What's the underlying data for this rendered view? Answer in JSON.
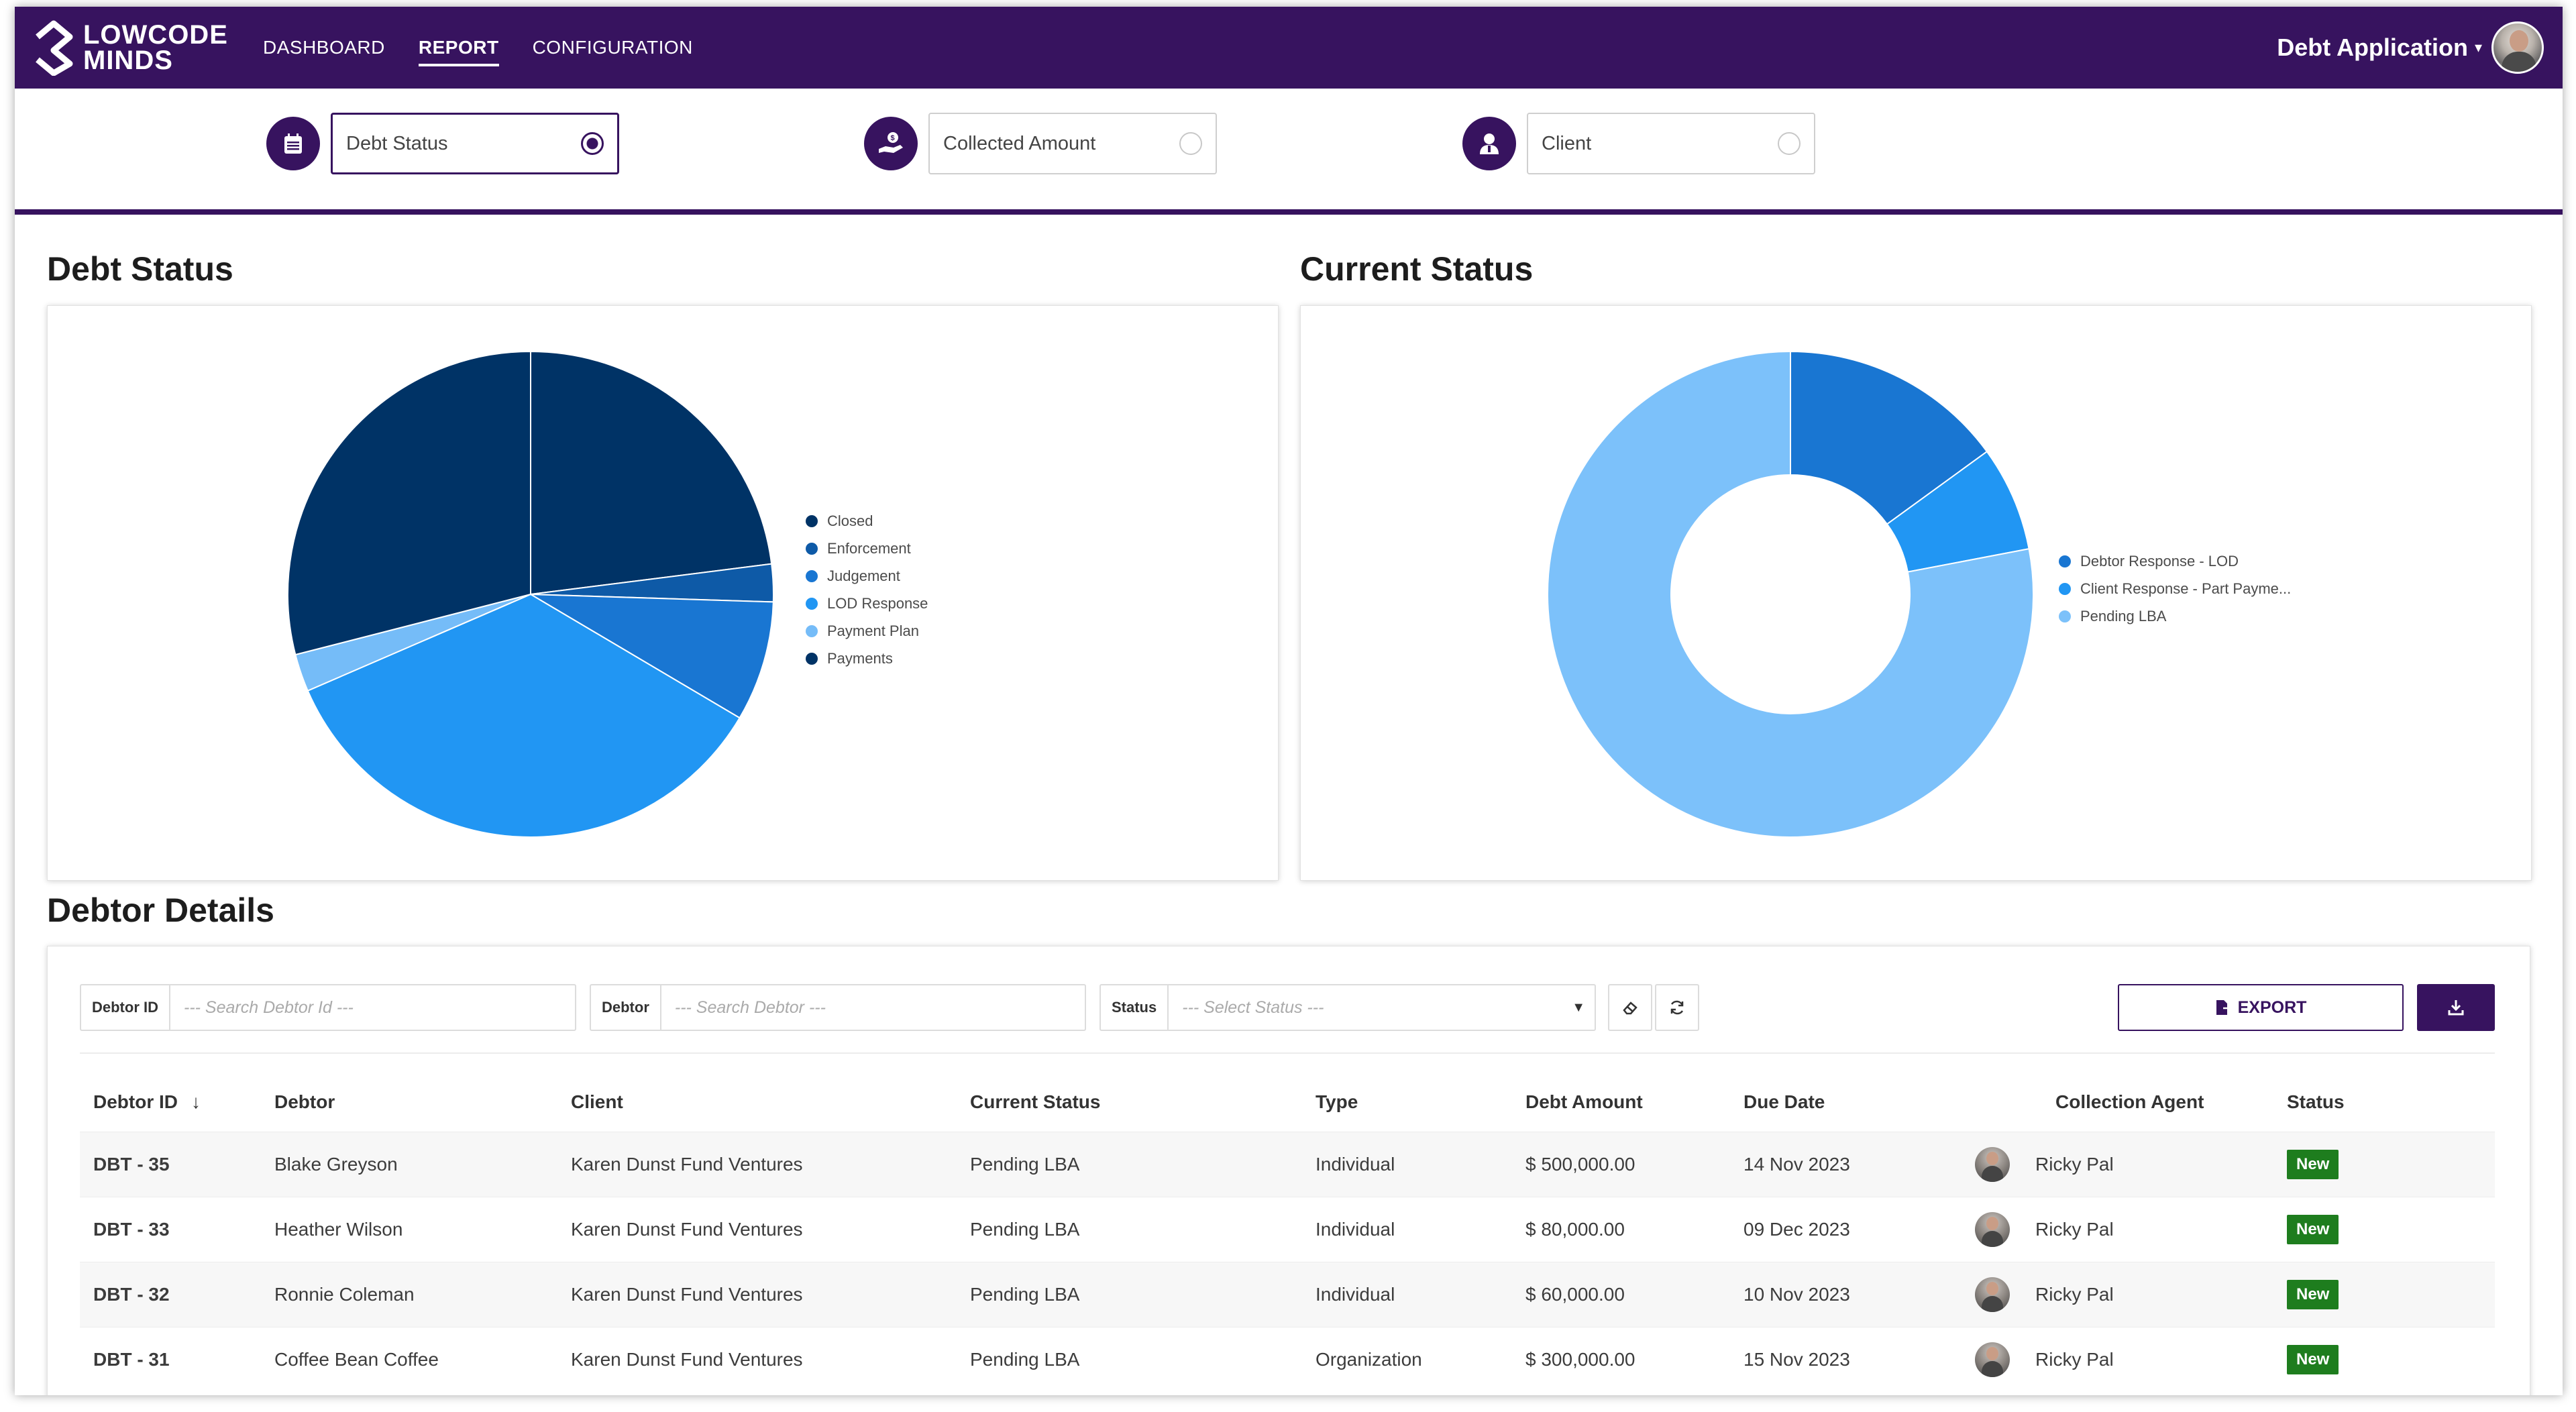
{
  "app": {
    "logo_line1": "LOWCODE",
    "logo_line2": "MINDS",
    "nav": [
      "DASHBOARD",
      "REPORT",
      "CONFIGURATION"
    ],
    "active_nav": "REPORT",
    "app_menu_label": "Debt Application",
    "brand_color": "#37135f"
  },
  "filters": [
    {
      "label": "Debt Status",
      "selected": true,
      "icon": "calendar-icon"
    },
    {
      "label": "Collected Amount",
      "selected": false,
      "icon": "hand-coin-icon"
    },
    {
      "label": "Client",
      "selected": false,
      "icon": "client-user-icon"
    }
  ],
  "sections": {
    "debt_status_title": "Debt Status",
    "current_status_title": "Current Status",
    "debtor_details_title": "Debtor Details"
  },
  "chart_data": [
    {
      "type": "pie",
      "title": "Debt Status",
      "legend_position": "right",
      "categories": [
        "Closed",
        "Enforcement",
        "Judgement",
        "LOD Response",
        "Payment Plan",
        "Payments"
      ],
      "values": [
        23,
        2.5,
        8,
        35,
        2.5,
        29
      ],
      "colors": [
        "#003366",
        "#0e5aa7",
        "#1976d2",
        "#2196f3",
        "#75bcf8",
        "#003366"
      ]
    },
    {
      "type": "pie",
      "subtype": "donut",
      "title": "Current Status",
      "legend_position": "right",
      "categories": [
        "Debtor Response - LOD",
        "Client Response - Part Payme...",
        "Pending LBA"
      ],
      "values": [
        15,
        7,
        78
      ],
      "colors": [
        "#1976d2",
        "#2196f3",
        "#7cc1fa"
      ]
    }
  ],
  "table": {
    "filters": {
      "debtor_id_label": "Debtor ID",
      "debtor_id_placeholder": "--- Search Debtor Id ---",
      "debtor_label": "Debtor",
      "debtor_placeholder": "--- Search Debtor ---",
      "status_label": "Status",
      "status_placeholder": "--- Select Status ---"
    },
    "export_label": "EXPORT",
    "columns": [
      "Debtor ID",
      "Debtor",
      "Client",
      "Current Status",
      "Type",
      "Debt Amount",
      "Due Date",
      "Collection Agent",
      "Status"
    ],
    "sort_indicator": "↓",
    "rows": [
      {
        "id": "DBT - 35",
        "debtor": "Blake Greyson",
        "client": "Karen Dunst Fund Ventures",
        "current_status": "Pending LBA",
        "type": "Individual",
        "amount": "$ 500,000.00",
        "due": "14 Nov 2023",
        "agent": "Ricky Pal",
        "status": "New"
      },
      {
        "id": "DBT - 33",
        "debtor": "Heather Wilson",
        "client": "Karen Dunst Fund Ventures",
        "current_status": "Pending LBA",
        "type": "Individual",
        "amount": "$ 80,000.00",
        "due": "09 Dec 2023",
        "agent": "Ricky Pal",
        "status": "New"
      },
      {
        "id": "DBT - 32",
        "debtor": "Ronnie Coleman",
        "client": "Karen Dunst Fund Ventures",
        "current_status": "Pending LBA",
        "type": "Individual",
        "amount": "$ 60,000.00",
        "due": "10 Nov 2023",
        "agent": "Ricky Pal",
        "status": "New"
      },
      {
        "id": "DBT - 31",
        "debtor": "Coffee Bean Coffee",
        "client": "Karen Dunst Fund Ventures",
        "current_status": "Pending LBA",
        "type": "Organization",
        "amount": "$ 300,000.00",
        "due": "15 Nov 2023",
        "agent": "Ricky Pal",
        "status": "New"
      }
    ],
    "status_badge_color": "#1e7d1e"
  }
}
